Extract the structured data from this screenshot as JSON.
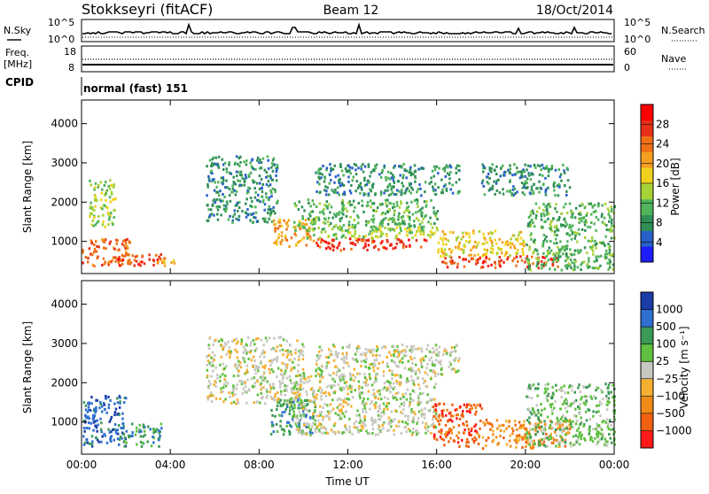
{
  "header": {
    "station": "Stokkseyri (fitACF)",
    "beam": "Beam 12",
    "date": "18/Oct/2014"
  },
  "strip_labels": {
    "nsky": "N.Sky",
    "nsearch": "N.Search",
    "freq": "Freq.",
    "freq_unit": "[MHz]",
    "cpid": "CPID",
    "nave": "Nave",
    "cpid_value": "normal (fast) 151"
  },
  "strip_ticks": {
    "noise_left": [
      "10^5",
      "10^0"
    ],
    "noise_right": [
      "10^5",
      "10^0"
    ],
    "freq_left": [
      "18",
      "8"
    ],
    "nave_right": [
      "60",
      "0"
    ]
  },
  "colors": {
    "power_scale": [
      "#1c1cff",
      "#2860c8",
      "#2f8f55",
      "#4fb45a",
      "#a6d236",
      "#f0d21e",
      "#f5a020",
      "#f07018",
      "#e83018",
      "#ff0000"
    ],
    "velocity_scale": [
      "#1a3da8",
      "#2f6fd0",
      "#3a9a55",
      "#60c040",
      "#c8c8c0",
      "#f5b030",
      "#f08a18",
      "#f06010",
      "#ff1a1a"
    ]
  },
  "chart_data": [
    {
      "type": "heatmap",
      "name": "power",
      "xlabel": "Time UT",
      "ylabel": "Slant Range [km]",
      "x_ticks": [
        "00:00",
        "04:00",
        "08:00",
        "12:00",
        "16:00",
        "20:00",
        "00:00"
      ],
      "x_range_hours": [
        0,
        24
      ],
      "ylim": [
        180,
        4600
      ],
      "y_ticks": [
        "1000",
        "2000",
        "3000",
        "4000"
      ],
      "colorbar": {
        "label": "Power [dB]",
        "ticks": [
          "4",
          "8",
          "12",
          "16",
          "20",
          "24",
          "28"
        ],
        "range": [
          0,
          30
        ]
      },
      "regions": [
        {
          "t0": 0.0,
          "t1": 2.2,
          "r0": 400,
          "r1": 1100,
          "level": 24
        },
        {
          "t0": 0.3,
          "t1": 1.5,
          "r0": 1400,
          "r1": 2600,
          "level": 12
        },
        {
          "t0": 1.5,
          "t1": 3.6,
          "r0": 400,
          "r1": 700,
          "level": 26
        },
        {
          "t0": 3.4,
          "t1": 4.2,
          "r0": 380,
          "r1": 600,
          "level": 20
        },
        {
          "t0": 5.6,
          "t1": 8.8,
          "r0": 1500,
          "r1": 3200,
          "level": 8
        },
        {
          "t0": 8.6,
          "t1": 10.5,
          "r0": 900,
          "r1": 1600,
          "level": 20
        },
        {
          "t0": 9.5,
          "t1": 16.0,
          "r0": 1300,
          "r1": 2100,
          "level": 10
        },
        {
          "t0": 10.5,
          "t1": 15.5,
          "r0": 800,
          "r1": 1100,
          "level": 27
        },
        {
          "t0": 10.0,
          "t1": 16.0,
          "r0": 1100,
          "r1": 1400,
          "level": 14
        },
        {
          "t0": 10.5,
          "t1": 17.0,
          "r0": 2200,
          "r1": 3000,
          "level": 8
        },
        {
          "t0": 16.2,
          "t1": 21.5,
          "r0": 350,
          "r1": 650,
          "level": 28
        },
        {
          "t0": 16.0,
          "t1": 20.0,
          "r0": 650,
          "r1": 1300,
          "level": 16
        },
        {
          "t0": 20.0,
          "t1": 24.0,
          "r0": 300,
          "r1": 2000,
          "level": 10
        },
        {
          "t0": 18.0,
          "t1": 22.0,
          "r0": 2200,
          "r1": 3000,
          "level": 6
        }
      ]
    },
    {
      "type": "heatmap",
      "name": "velocity",
      "xlabel": "Time UT",
      "ylabel": "Slant Range [km]",
      "x_ticks": [
        "00:00",
        "04:00",
        "08:00",
        "12:00",
        "16:00",
        "20:00",
        "00:00"
      ],
      "x_range_hours": [
        0,
        24
      ],
      "ylim": [
        180,
        4600
      ],
      "y_ticks": [
        "1000",
        "2000",
        "3000",
        "4000"
      ],
      "colorbar": {
        "label": "Velocity [m s⁻¹]",
        "ticks": [
          "1000",
          "500",
          "100",
          "25",
          "−25",
          "−100",
          "−500",
          "−1000"
        ],
        "range": [
          -1000,
          1000
        ]
      },
      "regions": [
        {
          "t0": 0.0,
          "t1": 2.0,
          "r0": 400,
          "r1": 1700,
          "level": 500
        },
        {
          "t0": 1.8,
          "t1": 3.6,
          "r0": 400,
          "r1": 1000,
          "level": 100
        },
        {
          "t0": 5.6,
          "t1": 10.0,
          "r0": 1500,
          "r1": 3200,
          "level": 0
        },
        {
          "t0": 8.5,
          "t1": 10.5,
          "r0": 700,
          "r1": 1600,
          "level": 150
        },
        {
          "t0": 9.5,
          "t1": 16.0,
          "r0": 700,
          "r1": 2200,
          "level": 0
        },
        {
          "t0": 10.5,
          "t1": 17.0,
          "r0": 2200,
          "r1": 3000,
          "level": 0
        },
        {
          "t0": 15.8,
          "t1": 18.0,
          "r0": 400,
          "r1": 1500,
          "level": -400
        },
        {
          "t0": 18.0,
          "t1": 22.0,
          "r0": 350,
          "r1": 1100,
          "level": -150
        },
        {
          "t0": 20.0,
          "t1": 24.0,
          "r0": 400,
          "r1": 2000,
          "level": 60
        }
      ]
    }
  ]
}
